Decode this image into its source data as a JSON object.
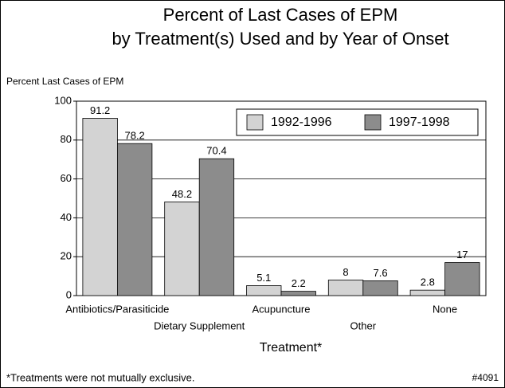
{
  "chart_data": {
    "type": "bar",
    "title": [
      "Percent of Last Cases of EPM",
      "by Treatment(s) Used and by Year of Onset"
    ],
    "y_label": "Percent Last Cases of EPM",
    "x_label": "Treatment*",
    "footnote": "*Treatments were not mutually exclusive.",
    "figure_id": "#4091",
    "categories": [
      "Antibiotics/Parasiticide",
      "Dietary Supplement",
      "Acupuncture",
      "Other",
      "None"
    ],
    "series": [
      {
        "name": "1992-1996",
        "color": "#d3d3d3",
        "values": [
          91.2,
          48.2,
          5.1,
          8,
          2.8
        ]
      },
      {
        "name": "1997-1998",
        "color": "#8c8c8c",
        "values": [
          78.2,
          70.4,
          2.2,
          7.6,
          17
        ]
      }
    ],
    "ylim": [
      0,
      100
    ],
    "yticks": [
      0,
      20,
      40,
      60,
      80,
      100
    ],
    "grid": true,
    "legend": "top-right"
  }
}
